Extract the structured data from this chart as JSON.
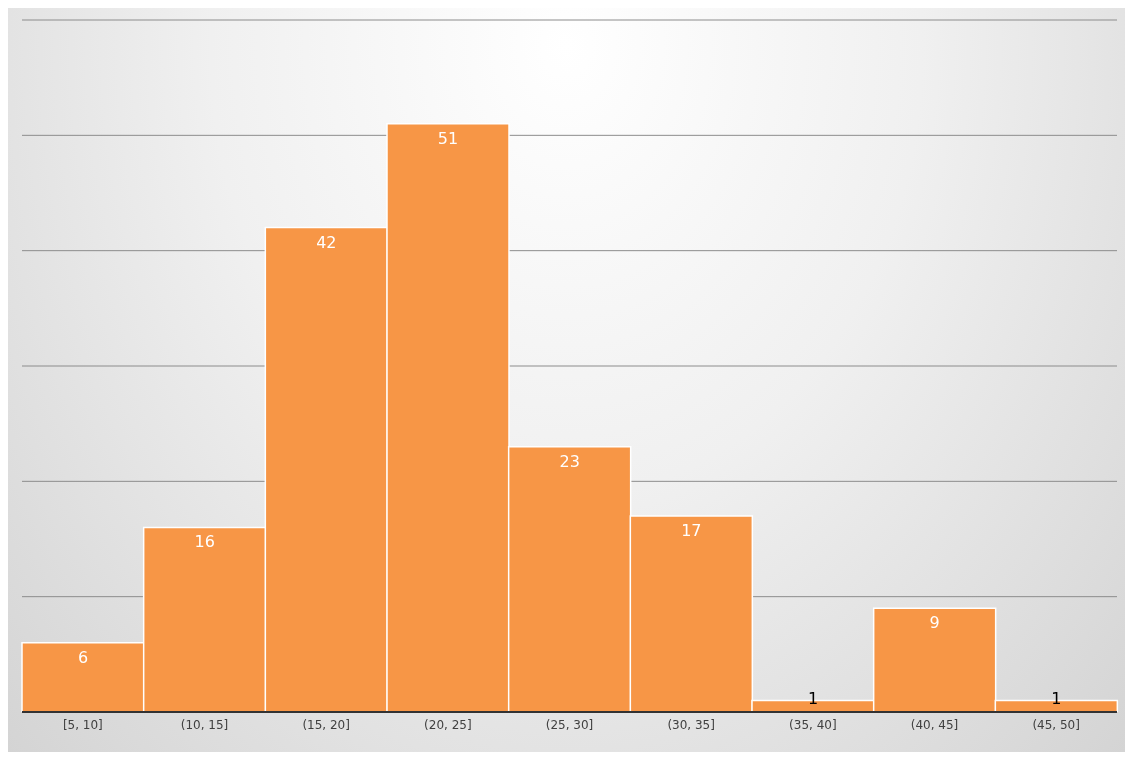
{
  "chart_data": {
    "type": "bar",
    "categories": [
      "[5, 10]",
      "(10, 15]",
      "(15, 20]",
      "(20, 25]",
      "(25, 30]",
      "(30, 35]",
      "(35, 40]",
      "(40, 45]",
      "(45, 50]"
    ],
    "values": [
      6,
      16,
      42,
      51,
      23,
      17,
      1,
      9,
      1
    ],
    "color": "#f79646",
    "ylim": [
      0,
      60
    ],
    "yticks": [
      {
        "value": 0,
        "label": null
      },
      {
        "value": 10,
        "label": null
      },
      {
        "value": 20,
        "label": null
      },
      {
        "value": 30,
        "label": null
      },
      {
        "value": 40,
        "label": null
      },
      {
        "value": 50,
        "label": null
      },
      {
        "value": 60,
        "label": null
      }
    ],
    "grid": "y",
    "data_labels": true
  }
}
